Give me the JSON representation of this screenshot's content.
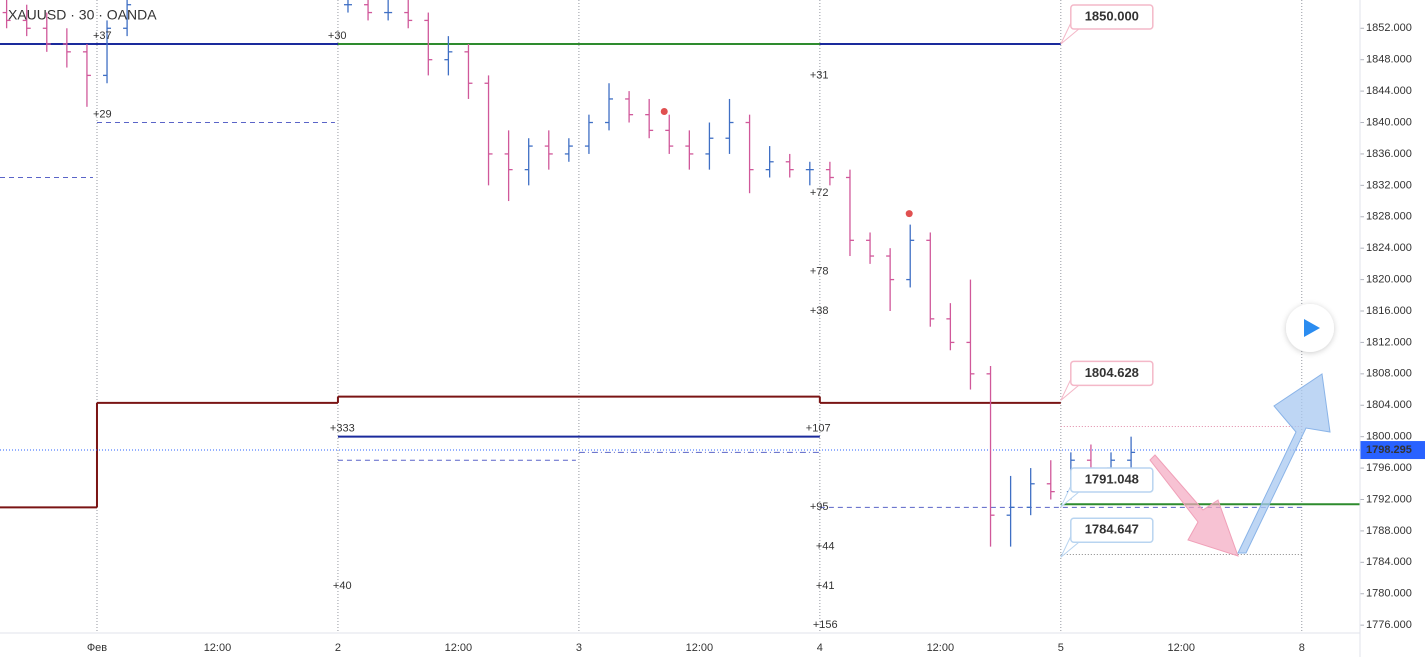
{
  "chart_data": {
    "type": "ohlc",
    "title": "XAUUSD · 30 · OANDA",
    "x": [
      -9,
      -7,
      -5,
      -3,
      -1,
      1,
      3,
      25,
      27,
      29,
      31,
      33,
      35,
      37,
      39,
      41,
      43,
      45,
      47,
      49,
      51,
      53,
      55,
      57,
      59,
      61,
      63,
      65,
      67,
      69,
      71,
      73,
      75,
      77,
      79,
      81,
      83,
      85,
      87,
      89,
      91,
      93,
      95,
      97,
      99,
      101,
      103
    ],
    "open": [
      1854,
      1853,
      1852,
      1850,
      1849,
      1846,
      1852,
      1855,
      1855,
      1854,
      1854,
      1853,
      1848,
      1849,
      1845,
      1836,
      1834,
      1837,
      1836,
      1837,
      1840,
      1843,
      1841,
      1839,
      1837,
      1836,
      1838,
      1840,
      1834,
      1835,
      1834,
      1834,
      1833,
      1825,
      1823,
      1820,
      1825,
      1815,
      1812,
      1808,
      1790,
      1791,
      1794,
      1793,
      1797,
      1796,
      1797
    ],
    "high": [
      1856,
      1855,
      1854,
      1852,
      1850,
      1853,
      1856,
      1856,
      1856,
      1856,
      1856,
      1854,
      1851,
      1850,
      1846,
      1839,
      1838,
      1839,
      1838,
      1841,
      1845,
      1844,
      1843,
      1841,
      1839,
      1840,
      1843,
      1841,
      1837,
      1836,
      1835,
      1835,
      1834,
      1826,
      1824,
      1827,
      1826,
      1817,
      1820,
      1809,
      1795,
      1796,
      1797,
      1798,
      1799,
      1798,
      1800
    ],
    "low": [
      1852,
      1851,
      1849,
      1847,
      1842,
      1845,
      1851,
      1854,
      1853,
      1853,
      1852,
      1846,
      1846,
      1843,
      1832,
      1830,
      1832,
      1834,
      1835,
      1836,
      1839,
      1840,
      1838,
      1836,
      1834,
      1834,
      1836,
      1831,
      1833,
      1833,
      1832,
      1832,
      1823,
      1822,
      1816,
      1819,
      1814,
      1811,
      1806,
      1786,
      1786,
      1790,
      1792,
      1792,
      1795,
      1794,
      1796
    ],
    "close": [
      1853,
      1852,
      1850,
      1849,
      1846,
      1852,
      1855,
      1855,
      1854,
      1854,
      1853,
      1848,
      1849,
      1845,
      1836,
      1834,
      1837,
      1836,
      1837,
      1840,
      1843,
      1841,
      1839,
      1837,
      1836,
      1838,
      1840,
      1834,
      1835,
      1834,
      1834,
      1833,
      1825,
      1823,
      1820,
      1825,
      1815,
      1812,
      1808,
      1790,
      1791,
      1794,
      1793,
      1797,
      1796,
      1797,
      1798
    ],
    "up_color": "#3f6fc4",
    "down_color": "#d0589a",
    "xlim": [
      -9.66,
      125.8
    ],
    "ylim": [
      1775,
      1855.6
    ],
    "xticks": [
      {
        "value": 0,
        "label": "Фев"
      },
      {
        "value": 12,
        "label": "12:00"
      },
      {
        "value": 24,
        "label": "2"
      },
      {
        "value": 36,
        "label": "12:00"
      },
      {
        "value": 48,
        "label": "3"
      },
      {
        "value": 60,
        "label": "12:00"
      },
      {
        "value": 72,
        "label": "4"
      },
      {
        "value": 84,
        "label": "12:00"
      },
      {
        "value": 96,
        "label": "5"
      },
      {
        "value": 108,
        "label": "12:00"
      },
      {
        "value": 120,
        "label": "8"
      }
    ],
    "xgrid": [
      0,
      24,
      48,
      72,
      96,
      120
    ],
    "yticks": [
      {
        "value": 1776,
        "label": "1776.000"
      },
      {
        "value": 1780,
        "label": "1780.000"
      },
      {
        "value": 1784,
        "label": "1784.000"
      },
      {
        "value": 1788,
        "label": "1788.000"
      },
      {
        "value": 1792,
        "label": "1792.000"
      },
      {
        "value": 1796,
        "label": "1796.000"
      },
      {
        "value": 1800,
        "label": "1800.000"
      },
      {
        "value": 1804,
        "label": "1804.000"
      },
      {
        "value": 1808,
        "label": "1808.000"
      },
      {
        "value": 1812,
        "label": "1812.000"
      },
      {
        "value": 1816,
        "label": "1816.000"
      },
      {
        "value": 1820,
        "label": "1820.000"
      },
      {
        "value": 1824,
        "label": "1824.000"
      },
      {
        "value": 1828,
        "label": "1828.000"
      },
      {
        "value": 1832,
        "label": "1832.000"
      },
      {
        "value": 1836,
        "label": "1836.000"
      },
      {
        "value": 1840,
        "label": "1840.000"
      },
      {
        "value": 1844,
        "label": "1844.000"
      },
      {
        "value": 1848,
        "label": "1848.000"
      },
      {
        "value": 1852,
        "label": "1852.000"
      }
    ],
    "last_price": 1798.295,
    "levels": [
      {
        "value": 1850,
        "from": -9.66,
        "to": 96,
        "color": "#1a2a9c",
        "style": "solid"
      },
      {
        "value": 1850,
        "from": 24,
        "to": 72,
        "color": "#2e8b2e",
        "style": "solid"
      },
      {
        "value": 1791,
        "from": -9.66,
        "to": 0,
        "color": "#7a1414",
        "style": "solid"
      },
      {
        "value": 1804.3,
        "from": 0,
        "to": 24,
        "color": "#7a1414",
        "style": "solid"
      },
      {
        "value": 1805.1,
        "from": 24,
        "to": 72,
        "color": "#7a1414",
        "style": "solid"
      },
      {
        "value": 1804.3,
        "from": 72,
        "to": 96,
        "color": "#7a1414",
        "style": "solid"
      },
      {
        "value": 1800,
        "from": 24,
        "to": 72,
        "color": "#1a2a9c",
        "style": "solid"
      },
      {
        "value": 1833,
        "from": -9.66,
        "to": -0.4,
        "color": "#5a64c8",
        "style": "dashed"
      },
      {
        "value": 1840,
        "from": 0,
        "to": 23.7,
        "color": "#5a64c8",
        "style": "dashed"
      },
      {
        "value": 1797,
        "from": 24,
        "to": 47.7,
        "color": "#5a64c8",
        "style": "dashed"
      },
      {
        "value": 1798,
        "from": 48,
        "to": 71.9,
        "color": "#5a64c8",
        "style": "dashdot"
      },
      {
        "value": 1791,
        "from": 72,
        "to": 120,
        "color": "#5a64c8",
        "style": "dashed"
      },
      {
        "value": 1791.4,
        "from": 96,
        "to": 125.8,
        "color": "#2e8b2e",
        "style": "solid"
      },
      {
        "value": 1801.3,
        "from": 96,
        "to": 120,
        "color": "#e08aa8",
        "style": "dotted"
      },
      {
        "value": 1785,
        "from": 96,
        "to": 120,
        "color": "#888888",
        "style": "dotted"
      }
    ],
    "price_labels": [
      {
        "value": 1850,
        "label": "1850.000",
        "x": 96,
        "color": "#e0406a"
      },
      {
        "value": 1804.628,
        "label": "1804.628",
        "x": 96,
        "color": "#e0406a"
      },
      {
        "value": 1791.048,
        "label": "1791.048",
        "x": 96,
        "color": "#3a70c0"
      },
      {
        "value": 1784.647,
        "label": "1784.647",
        "x": 96,
        "color": "#3a70c0"
      }
    ],
    "annotations": [
      {
        "text": "+37",
        "x": -0.4,
        "y": 1851,
        "color": "#7a9ee0"
      },
      {
        "text": "+29",
        "x": -0.4,
        "y": 1841,
        "color": "#7a9ee0"
      },
      {
        "text": "+30",
        "x": 23,
        "y": 1851,
        "color": "#d070c8"
      },
      {
        "text": "+31",
        "x": 71,
        "y": 1846,
        "color": "#d070c8"
      },
      {
        "text": "+72",
        "x": 71,
        "y": 1831,
        "color": "#d070c8"
      },
      {
        "text": "+78",
        "x": 71,
        "y": 1821,
        "color": "#d070c8"
      },
      {
        "text": "+38",
        "x": 71,
        "y": 1816,
        "color": "#d070c8"
      },
      {
        "text": "+333",
        "x": 23.2,
        "y": 1801,
        "color": "#7a9ee0"
      },
      {
        "text": "+107",
        "x": 70.6,
        "y": 1801,
        "color": "#d070c8"
      },
      {
        "text": "+95",
        "x": 71,
        "y": 1791,
        "color": "#7a9ee0"
      },
      {
        "text": "+44",
        "x": 71.6,
        "y": 1786,
        "color": "#7a9ee0"
      },
      {
        "text": "+41",
        "x": 71.6,
        "y": 1781,
        "color": "#7a9ee0"
      },
      {
        "text": "+40",
        "x": 23.5,
        "y": 1781,
        "color": "#7a9ee0"
      },
      {
        "text": "+156",
        "x": 71.3,
        "y": 1776,
        "color": "#7a9ee0"
      }
    ],
    "signals": [
      {
        "x": 56.5,
        "y": 1841.4
      },
      {
        "x": 80.9,
        "y": 1828.4
      }
    ],
    "signal_color": "#e05050"
  }
}
